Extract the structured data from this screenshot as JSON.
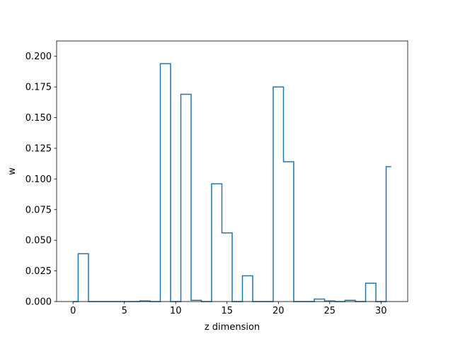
{
  "chart_data": {
    "type": "line",
    "drawstyle": "steps-mid",
    "title": "",
    "xlabel": "z dimension",
    "ylabel": "w",
    "xlim": [
      -1.6,
      32.6
    ],
    "ylim": [
      0,
      0.2125
    ],
    "xticks": [
      0,
      5,
      10,
      15,
      20,
      25,
      30
    ],
    "yticks": [
      0.0,
      0.025,
      0.05,
      0.075,
      0.1,
      0.125,
      0.15,
      0.175,
      0.2
    ],
    "ytick_labels": [
      "0.000",
      "0.025",
      "0.050",
      "0.075",
      "0.100",
      "0.125",
      "0.150",
      "0.175",
      "0.200"
    ],
    "grid": false,
    "line_color": "#1f77b4",
    "series": [
      {
        "x": [
          0,
          1,
          2,
          3,
          4,
          5,
          6,
          7,
          8,
          9,
          10,
          11,
          12,
          13,
          14,
          15,
          16,
          17,
          18,
          19,
          20,
          21,
          22,
          23,
          24,
          25,
          26,
          27,
          28,
          29,
          30,
          31
        ],
        "values": [
          0.0,
          0.039,
          0.0,
          0.0,
          0.0,
          0.0,
          0.0,
          0.0005,
          0.0,
          0.194,
          0.0,
          0.169,
          0.001,
          0.0,
          0.096,
          0.056,
          0.0,
          0.021,
          0.0,
          0.0,
          0.175,
          0.114,
          0.0,
          0.0,
          0.002,
          0.0005,
          0.0,
          0.001,
          0.0,
          0.015,
          0.0,
          0.11
        ]
      }
    ]
  }
}
